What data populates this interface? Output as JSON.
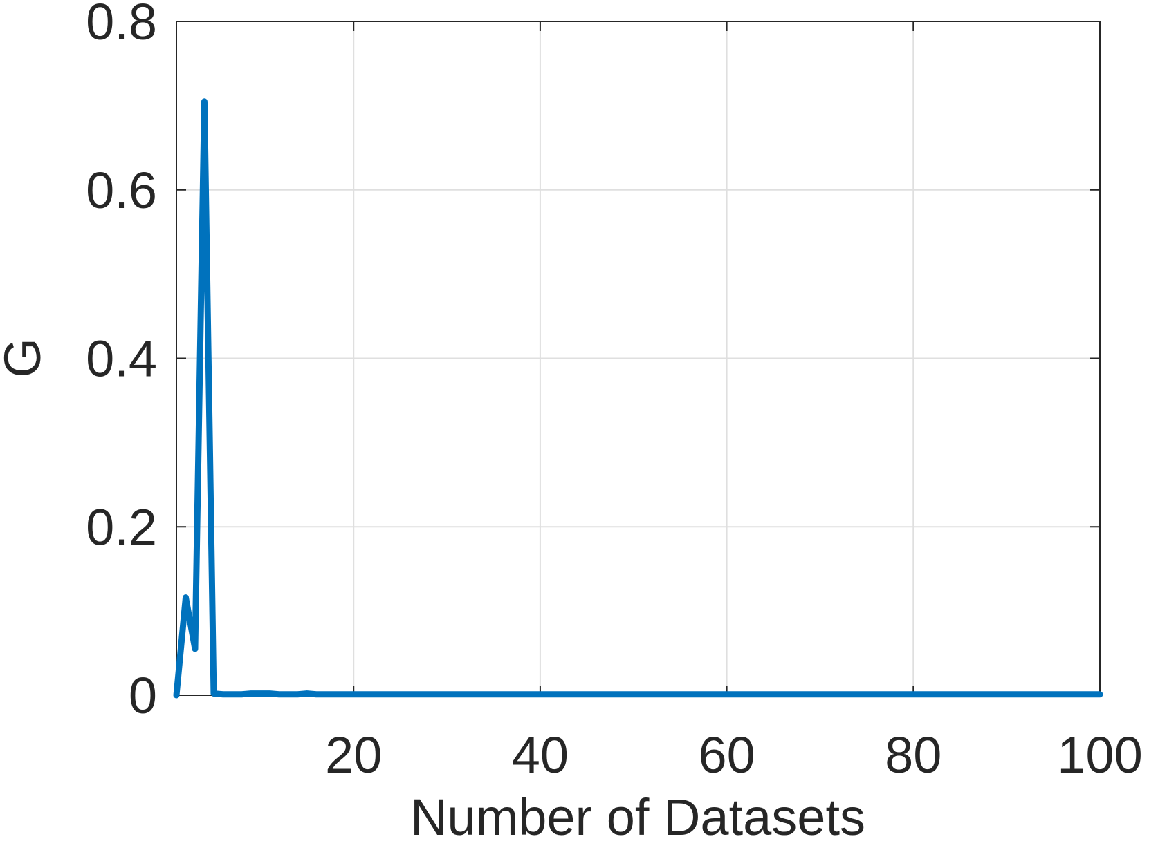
{
  "chart_data": {
    "type": "line",
    "xlabel": "Number of Datasets",
    "ylabel": "G",
    "x": [
      1,
      2,
      3,
      4,
      5,
      6,
      7,
      8,
      9,
      10,
      11,
      12,
      13,
      14,
      15,
      16,
      17,
      18,
      19,
      20,
      21,
      22,
      23,
      24,
      25,
      26,
      27,
      28,
      29,
      30,
      31,
      32,
      33,
      34,
      35,
      36,
      37,
      38,
      39,
      40,
      41,
      42,
      43,
      44,
      45,
      46,
      47,
      48,
      49,
      50,
      51,
      52,
      53,
      54,
      55,
      56,
      57,
      58,
      59,
      60,
      61,
      62,
      63,
      64,
      65,
      66,
      67,
      68,
      69,
      70,
      71,
      72,
      73,
      74,
      75,
      76,
      77,
      78,
      79,
      80,
      81,
      82,
      83,
      84,
      85,
      86,
      87,
      88,
      89,
      90,
      91,
      92,
      93,
      94,
      95,
      96,
      97,
      98,
      99,
      100
    ],
    "series": [
      {
        "name": "G",
        "color": "#0072bd",
        "values": [
          0,
          0.116,
          0.055,
          0.705,
          0.002,
          0.001,
          0.001,
          0.001,
          0.002,
          0.002,
          0.002,
          0.001,
          0.001,
          0.001,
          0.002,
          0.001,
          0.001,
          0.001,
          0.001,
          0.001,
          0.001,
          0.001,
          0.001,
          0.001,
          0.001,
          0.001,
          0.001,
          0.001,
          0.001,
          0.001,
          0.001,
          0.001,
          0.001,
          0.001,
          0.001,
          0.001,
          0.001,
          0.001,
          0.001,
          0.001,
          0.001,
          0.001,
          0.001,
          0.001,
          0.001,
          0.001,
          0.001,
          0.001,
          0.001,
          0.001,
          0.001,
          0.001,
          0.001,
          0.001,
          0.001,
          0.001,
          0.001,
          0.001,
          0.001,
          0.001,
          0.001,
          0.001,
          0.001,
          0.001,
          0.001,
          0.001,
          0.001,
          0.001,
          0.001,
          0.001,
          0.001,
          0.001,
          0.001,
          0.001,
          0.001,
          0.001,
          0.001,
          0.001,
          0.001,
          0.001,
          0.001,
          0.001,
          0.001,
          0.001,
          0.001,
          0.001,
          0.001,
          0.001,
          0.001,
          0.001,
          0.001,
          0.001,
          0.001,
          0.001,
          0.001,
          0.001,
          0.001,
          0.001,
          0.001,
          0.001
        ]
      }
    ],
    "xlim": [
      1,
      100
    ],
    "xticks": [
      20,
      40,
      60,
      80,
      100
    ],
    "ylim": [
      0,
      0.8
    ],
    "yticks": [
      0,
      0.2,
      0.4,
      0.6,
      0.8
    ],
    "grid": true
  }
}
